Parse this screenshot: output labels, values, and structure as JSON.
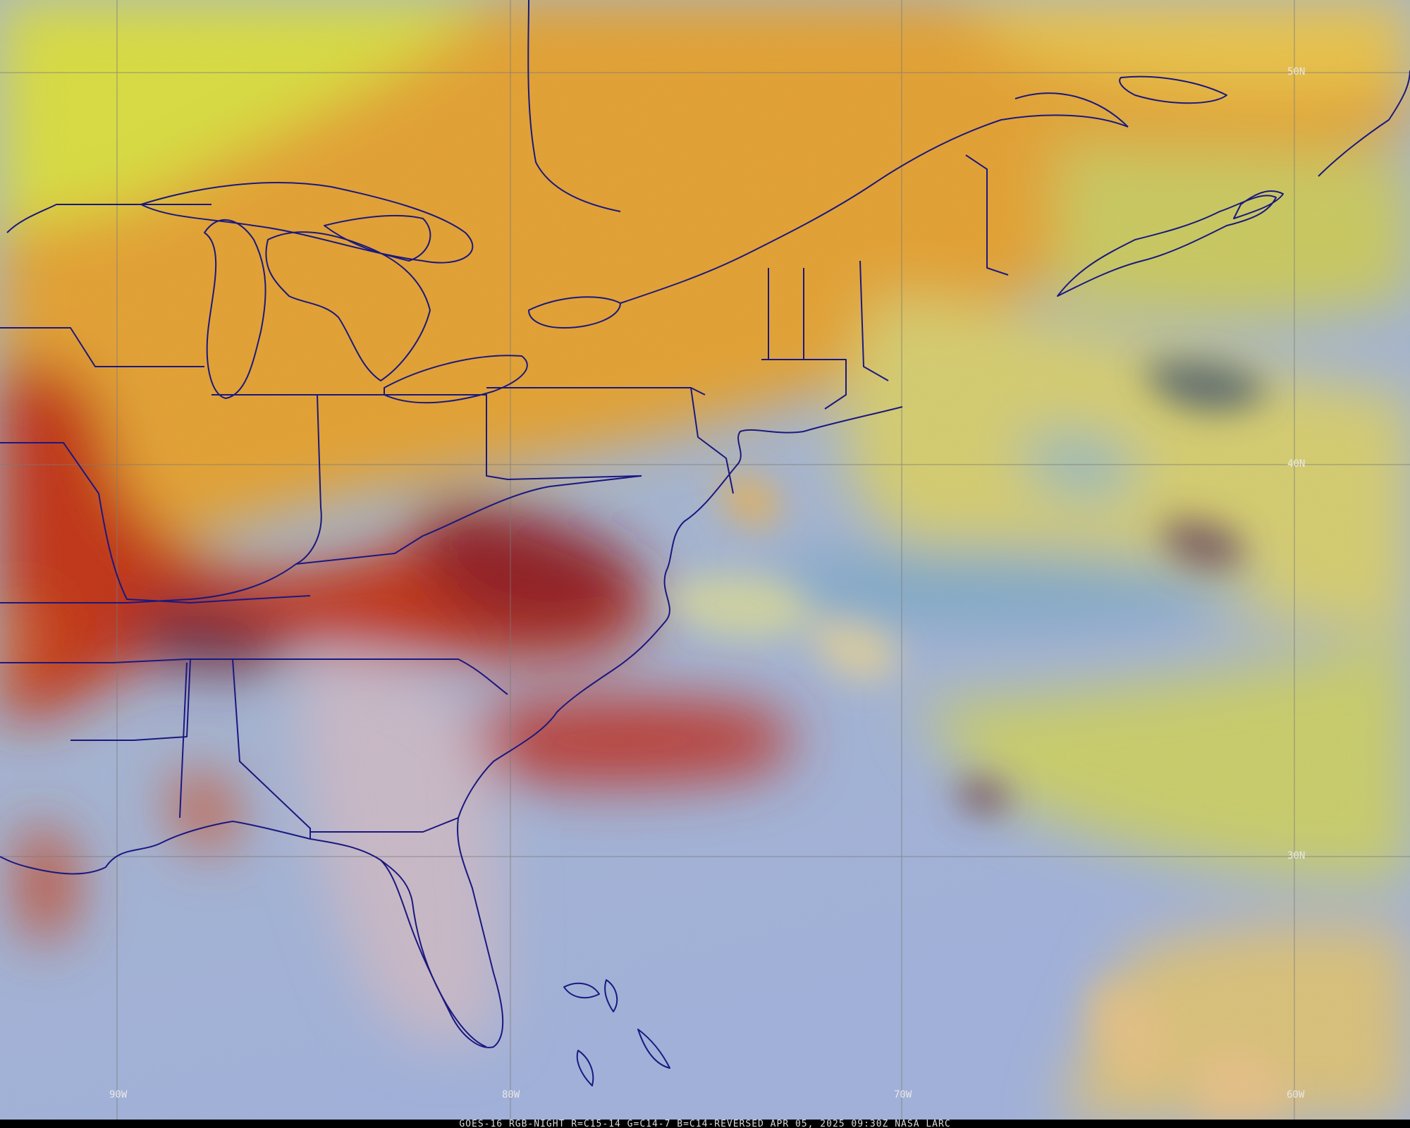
{
  "map": {
    "graticule": {
      "longitudes": [
        "90W",
        "80W",
        "70W",
        "60W"
      ],
      "latitudes": [
        "50N",
        "40N",
        "30N"
      ]
    },
    "footer": "GOES-16 RGB-NIGHT  R=C15-14 G=C14-7 B=C14-REVERSED  APR 05, 2025 09:30Z NASA LARC"
  }
}
